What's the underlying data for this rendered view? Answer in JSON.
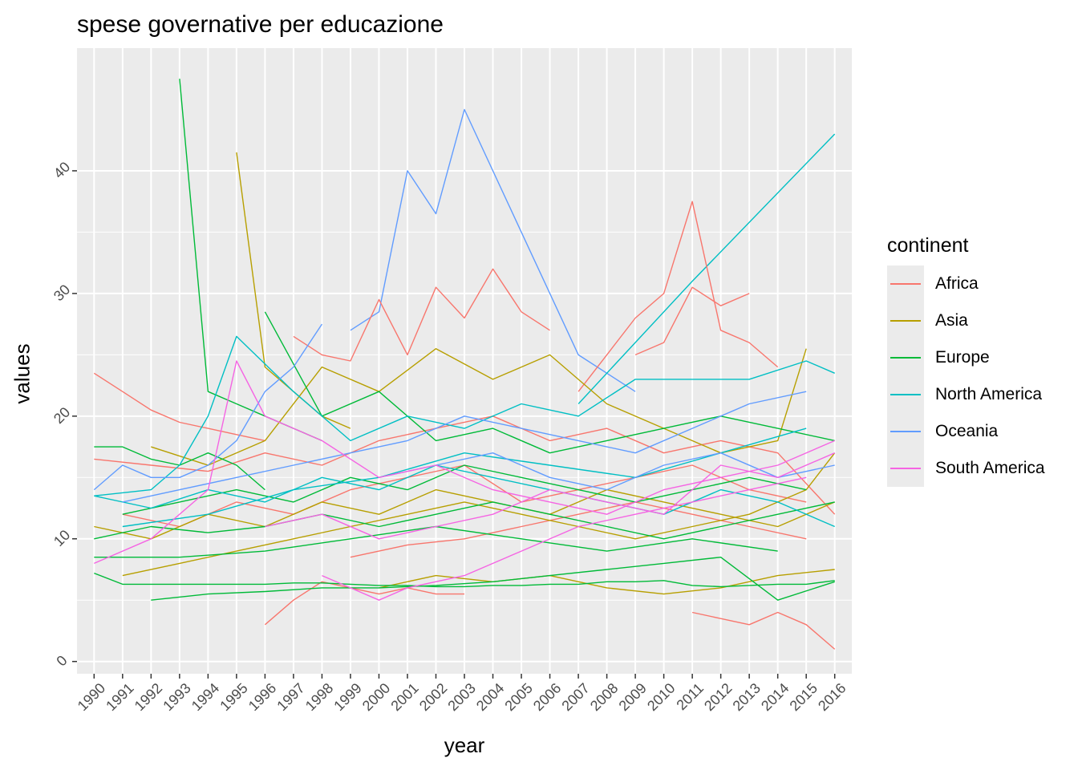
{
  "chart_data": {
    "type": "line",
    "title": "spese governative per educazione",
    "xlabel": "year",
    "ylabel": "values",
    "x": [
      1990,
      1991,
      1992,
      1993,
      1994,
      1995,
      1996,
      1997,
      1998,
      1999,
      2000,
      2001,
      2002,
      2003,
      2004,
      2005,
      2006,
      2007,
      2008,
      2009,
      2010,
      2011,
      2012,
      2013,
      2014,
      2015,
      2016
    ],
    "x_tick_labels": [
      "1990",
      "1991",
      "1992",
      "1993",
      "1994",
      "1995",
      "1996",
      "1997",
      "1998",
      "1999",
      "2000",
      "2001",
      "2002",
      "2003",
      "2004",
      "2005",
      "2006",
      "2007",
      "2008",
      "2009",
      "2010",
      "2011",
      "2012",
      "2013",
      "2014",
      "2015",
      "2016"
    ],
    "y_ticks": [
      0,
      10,
      20,
      30,
      40
    ],
    "y_tick_labels": [
      "0",
      "10",
      "20",
      "30",
      "40"
    ],
    "ylim": [
      -1,
      50
    ],
    "xlim": [
      1989.4,
      2016.6
    ],
    "grid": true,
    "legend": {
      "title": "continent",
      "position": "right",
      "entries": [
        {
          "name": "Africa",
          "color": "#F8766D"
        },
        {
          "name": "Asia",
          "color": "#B79F00"
        },
        {
          "name": "Europe",
          "color": "#00BA38"
        },
        {
          "name": "North America",
          "color": "#00BFC4"
        },
        {
          "name": "Oceania",
          "color": "#619CFF"
        },
        {
          "name": "South America",
          "color": "#F564E3"
        }
      ]
    },
    "series": [
      {
        "group": "Europe",
        "x": [
          1993,
          1994,
          1995,
          1996,
          1997,
          1998
        ],
        "y": [
          47.5,
          22,
          21,
          20,
          19,
          18
        ]
      },
      {
        "group": "Asia",
        "x": [
          1995,
          1996,
          1997,
          1998,
          1999
        ],
        "y": [
          41.5,
          24,
          22,
          20,
          19
        ]
      },
      {
        "group": "Oceania",
        "x": [
          1999,
          2000,
          2001,
          2002,
          2003,
          2005,
          2007,
          2009
        ],
        "y": [
          27,
          28.5,
          40,
          36.5,
          45,
          35,
          25,
          22
        ]
      },
      {
        "group": "North America",
        "x": [
          2007,
          2011,
          2016
        ],
        "y": [
          21,
          31,
          43
        ]
      },
      {
        "group": "Africa",
        "x": [
          2007,
          2008,
          2009,
          2010,
          2011,
          2012,
          2013,
          2014
        ],
        "y": [
          22,
          25,
          28,
          30,
          37.5,
          27,
          26,
          24
        ]
      },
      {
        "group": "Africa",
        "x": [
          2011,
          2012,
          2013,
          2014,
          2015,
          2016
        ],
        "y": [
          4,
          3.5,
          3,
          4,
          3,
          1
        ]
      },
      {
        "group": "Africa",
        "x": [
          1996,
          1997,
          1998,
          1999,
          2000,
          2001,
          2002,
          2003
        ],
        "y": [
          3,
          5,
          6.5,
          6,
          5.5,
          6,
          5.5,
          5.5
        ]
      },
      {
        "group": "Africa",
        "x": [
          1990,
          1991,
          1992,
          1993,
          1994,
          1995,
          1996
        ],
        "y": [
          23.5,
          22,
          20.5,
          19.5,
          19,
          18.5,
          18
        ]
      },
      {
        "group": "Africa",
        "x": [
          1997,
          1998,
          1999,
          2000,
          2001,
          2002,
          2003,
          2004,
          2005,
          2006
        ],
        "y": [
          26.5,
          25,
          24.5,
          29.5,
          25,
          30.5,
          28,
          32,
          28.5,
          27
        ]
      },
      {
        "group": "Africa",
        "x": [
          2009,
          2010,
          2011,
          2012,
          2013
        ],
        "y": [
          25,
          26,
          30.5,
          29,
          30
        ]
      },
      {
        "group": "Africa",
        "x": [
          1990,
          1992,
          1994,
          1996,
          1998,
          2000,
          2002,
          2004,
          2006,
          2008,
          2010,
          2012,
          2014,
          2016
        ],
        "y": [
          16.5,
          16,
          15.5,
          17,
          16,
          18,
          19,
          20,
          18,
          19,
          17,
          18,
          17,
          12
        ]
      },
      {
        "group": "Africa",
        "x": [
          1991,
          1993,
          1995,
          1997,
          1999,
          2001,
          2003,
          2005,
          2007,
          2009,
          2011,
          2013,
          2015
        ],
        "y": [
          12,
          11,
          13,
          12,
          14,
          15,
          16,
          13,
          14,
          15,
          16,
          14,
          13
        ]
      },
      {
        "group": "Africa",
        "x": [
          1999,
          2001,
          2003,
          2005,
          2007,
          2009,
          2011,
          2013,
          2015
        ],
        "y": [
          8.5,
          9.5,
          10,
          11,
          12,
          13,
          12,
          11,
          10
        ]
      },
      {
        "group": "Asia",
        "x": [
          1991,
          1993,
          1995,
          1997,
          1999,
          2001,
          2003,
          2005,
          2007,
          2009,
          2011,
          2013,
          2015,
          2016
        ],
        "y": [
          7,
          8,
          9,
          10,
          11,
          12,
          13,
          12,
          11,
          10,
          11,
          12,
          14,
          17
        ]
      },
      {
        "group": "Asia",
        "x": [
          1992,
          1994,
          1996,
          1998,
          2000,
          2002,
          2004,
          2006,
          2008,
          2010,
          2012,
          2014,
          2015
        ],
        "y": [
          17.5,
          16,
          18,
          24,
          22,
          25.5,
          23,
          25,
          21,
          19,
          17,
          18,
          25.5
        ]
      },
      {
        "group": "Asia",
        "x": [
          2000,
          2002,
          2004,
          2006,
          2008,
          2010,
          2012,
          2014,
          2016
        ],
        "y": [
          6,
          7,
          6.5,
          7,
          6,
          5.5,
          6,
          7,
          7.5
        ]
      },
      {
        "group": "Asia",
        "x": [
          1990,
          1992,
          1994,
          1996,
          1998,
          2000,
          2002,
          2004,
          2006,
          2008,
          2010,
          2012,
          2014,
          2016
        ],
        "y": [
          11,
          10,
          12,
          11,
          13,
          12,
          14,
          13,
          12,
          14,
          13,
          12,
          11,
          13
        ]
      },
      {
        "group": "Europe",
        "x": [
          1990,
          1991,
          1992,
          1993,
          1994,
          1995,
          1996
        ],
        "y": [
          17.5,
          17.5,
          16.5,
          16,
          17,
          16,
          14
        ]
      },
      {
        "group": "Europe",
        "x": [
          1990,
          1991,
          1992,
          1993,
          1994,
          1995,
          1996,
          1997,
          1998,
          1999,
          2000,
          2001,
          2002,
          2003,
          2004,
          2005,
          2006,
          2007,
          2008,
          2009,
          2010,
          2011,
          2012,
          2013,
          2014,
          2015,
          2016
        ],
        "y": [
          7.2,
          6.3,
          6.3,
          6.3,
          6.3,
          6.3,
          6.3,
          6.4,
          6.4,
          6.3,
          6.2,
          6.2,
          6.1,
          6.1,
          6.2,
          6.2,
          6.3,
          6.3,
          6.5,
          6.5,
          6.6,
          6.2,
          6.1,
          6.2,
          6.3,
          6.3,
          6.6
        ]
      },
      {
        "group": "Europe",
        "x": [
          1992,
          1994,
          1996,
          1998,
          2000,
          2002,
          2004,
          2006,
          2008,
          2010,
          2012,
          2014,
          2016
        ],
        "y": [
          5,
          5.5,
          5.7,
          6,
          6,
          6.2,
          6.5,
          7,
          7.5,
          8,
          8.5,
          5,
          6.5
        ]
      },
      {
        "group": "Europe",
        "x": [
          1990,
          1992,
          1994,
          1996,
          1998,
          2000,
          2002,
          2004,
          2006,
          2008,
          2010,
          2012,
          2014,
          2016
        ],
        "y": [
          10,
          11,
          10.5,
          11,
          12,
          11,
          12,
          13,
          12,
          11,
          10,
          11,
          12,
          13
        ]
      },
      {
        "group": "Europe",
        "x": [
          1991,
          1993,
          1995,
          1997,
          1999,
          2001,
          2003,
          2005,
          2007,
          2009,
          2011,
          2013,
          2015
        ],
        "y": [
          12,
          13,
          14,
          13,
          15,
          14,
          16,
          15,
          14,
          13,
          14,
          15,
          14
        ]
      },
      {
        "group": "Europe",
        "x": [
          1996,
          1998,
          2000,
          2002,
          2004,
          2006,
          2008,
          2010,
          2012,
          2014,
          2016
        ],
        "y": [
          28.5,
          20,
          22,
          18,
          19,
          17,
          18,
          19,
          20,
          19,
          18
        ]
      },
      {
        "group": "Europe",
        "x": [
          1990,
          1993,
          1996,
          1999,
          2002,
          2005,
          2008,
          2011,
          2014
        ],
        "y": [
          8.5,
          8.5,
          9,
          10,
          11,
          10,
          9,
          10,
          9
        ]
      },
      {
        "group": "North America",
        "x": [
          1990,
          1992,
          1993,
          1994,
          1995,
          1997,
          1999,
          2001,
          2003,
          2005,
          2007,
          2009,
          2011,
          2013,
          2015,
          2016
        ],
        "y": [
          13.5,
          14,
          16,
          20,
          26.5,
          22,
          18,
          20,
          19,
          21,
          20,
          23,
          23,
          23,
          24.5,
          23.5
        ]
      },
      {
        "group": "North America",
        "x": [
          1990,
          1992,
          1994,
          1996,
          1998,
          2000,
          2002,
          2004,
          2006,
          2008,
          2010,
          2012,
          2014,
          2016
        ],
        "y": [
          13.5,
          12.5,
          14,
          13,
          15,
          14,
          16,
          15,
          14,
          13,
          12,
          14,
          13,
          11
        ]
      },
      {
        "group": "North America",
        "x": [
          1991,
          1994,
          1997,
          2000,
          2003,
          2006,
          2009,
          2012,
          2015
        ],
        "y": [
          11,
          12,
          14,
          15,
          17,
          16,
          15,
          17,
          19
        ]
      },
      {
        "group": "Oceania",
        "x": [
          1990,
          1991,
          1992,
          1993,
          1994,
          1995,
          1996,
          1997,
          1998
        ],
        "y": [
          14,
          16,
          15,
          15,
          16,
          18,
          22,
          24,
          27.5
        ]
      },
      {
        "group": "Oceania",
        "x": [
          1991,
          1993,
          1995,
          1997,
          1999,
          2001,
          2003,
          2005,
          2007,
          2009,
          2011,
          2013,
          2015
        ],
        "y": [
          13,
          14,
          15,
          16,
          17,
          18,
          20,
          19,
          18,
          17,
          19,
          21,
          22
        ]
      },
      {
        "group": "Oceania",
        "x": [
          2000,
          2002,
          2004,
          2006,
          2008,
          2010,
          2012,
          2014,
          2016
        ],
        "y": [
          15,
          16,
          17,
          15,
          14,
          16,
          17,
          15,
          16
        ]
      },
      {
        "group": "South America",
        "x": [
          1990,
          1992,
          1994,
          1995,
          1996,
          1998,
          2000,
          2002,
          2004,
          2006,
          2008,
          2010,
          2012,
          2014,
          2016
        ],
        "y": [
          8,
          10,
          14,
          24.5,
          20,
          18,
          15,
          16,
          14,
          13,
          12,
          14,
          15,
          16,
          18
        ]
      },
      {
        "group": "South America",
        "x": [
          1998,
          1999,
          2000,
          2001,
          2003,
          2005,
          2007,
          2009,
          2011,
          2013,
          2015
        ],
        "y": [
          7,
          6,
          5,
          6,
          7,
          9,
          11,
          12,
          13,
          14,
          15
        ]
      },
      {
        "group": "South America",
        "x": [
          1996,
          1998,
          2000,
          2002,
          2004,
          2006,
          2008,
          2010,
          2012,
          2014,
          2016
        ],
        "y": [
          11,
          12,
          10,
          11,
          12,
          14,
          13,
          12,
          16,
          15,
          17
        ]
      }
    ]
  }
}
